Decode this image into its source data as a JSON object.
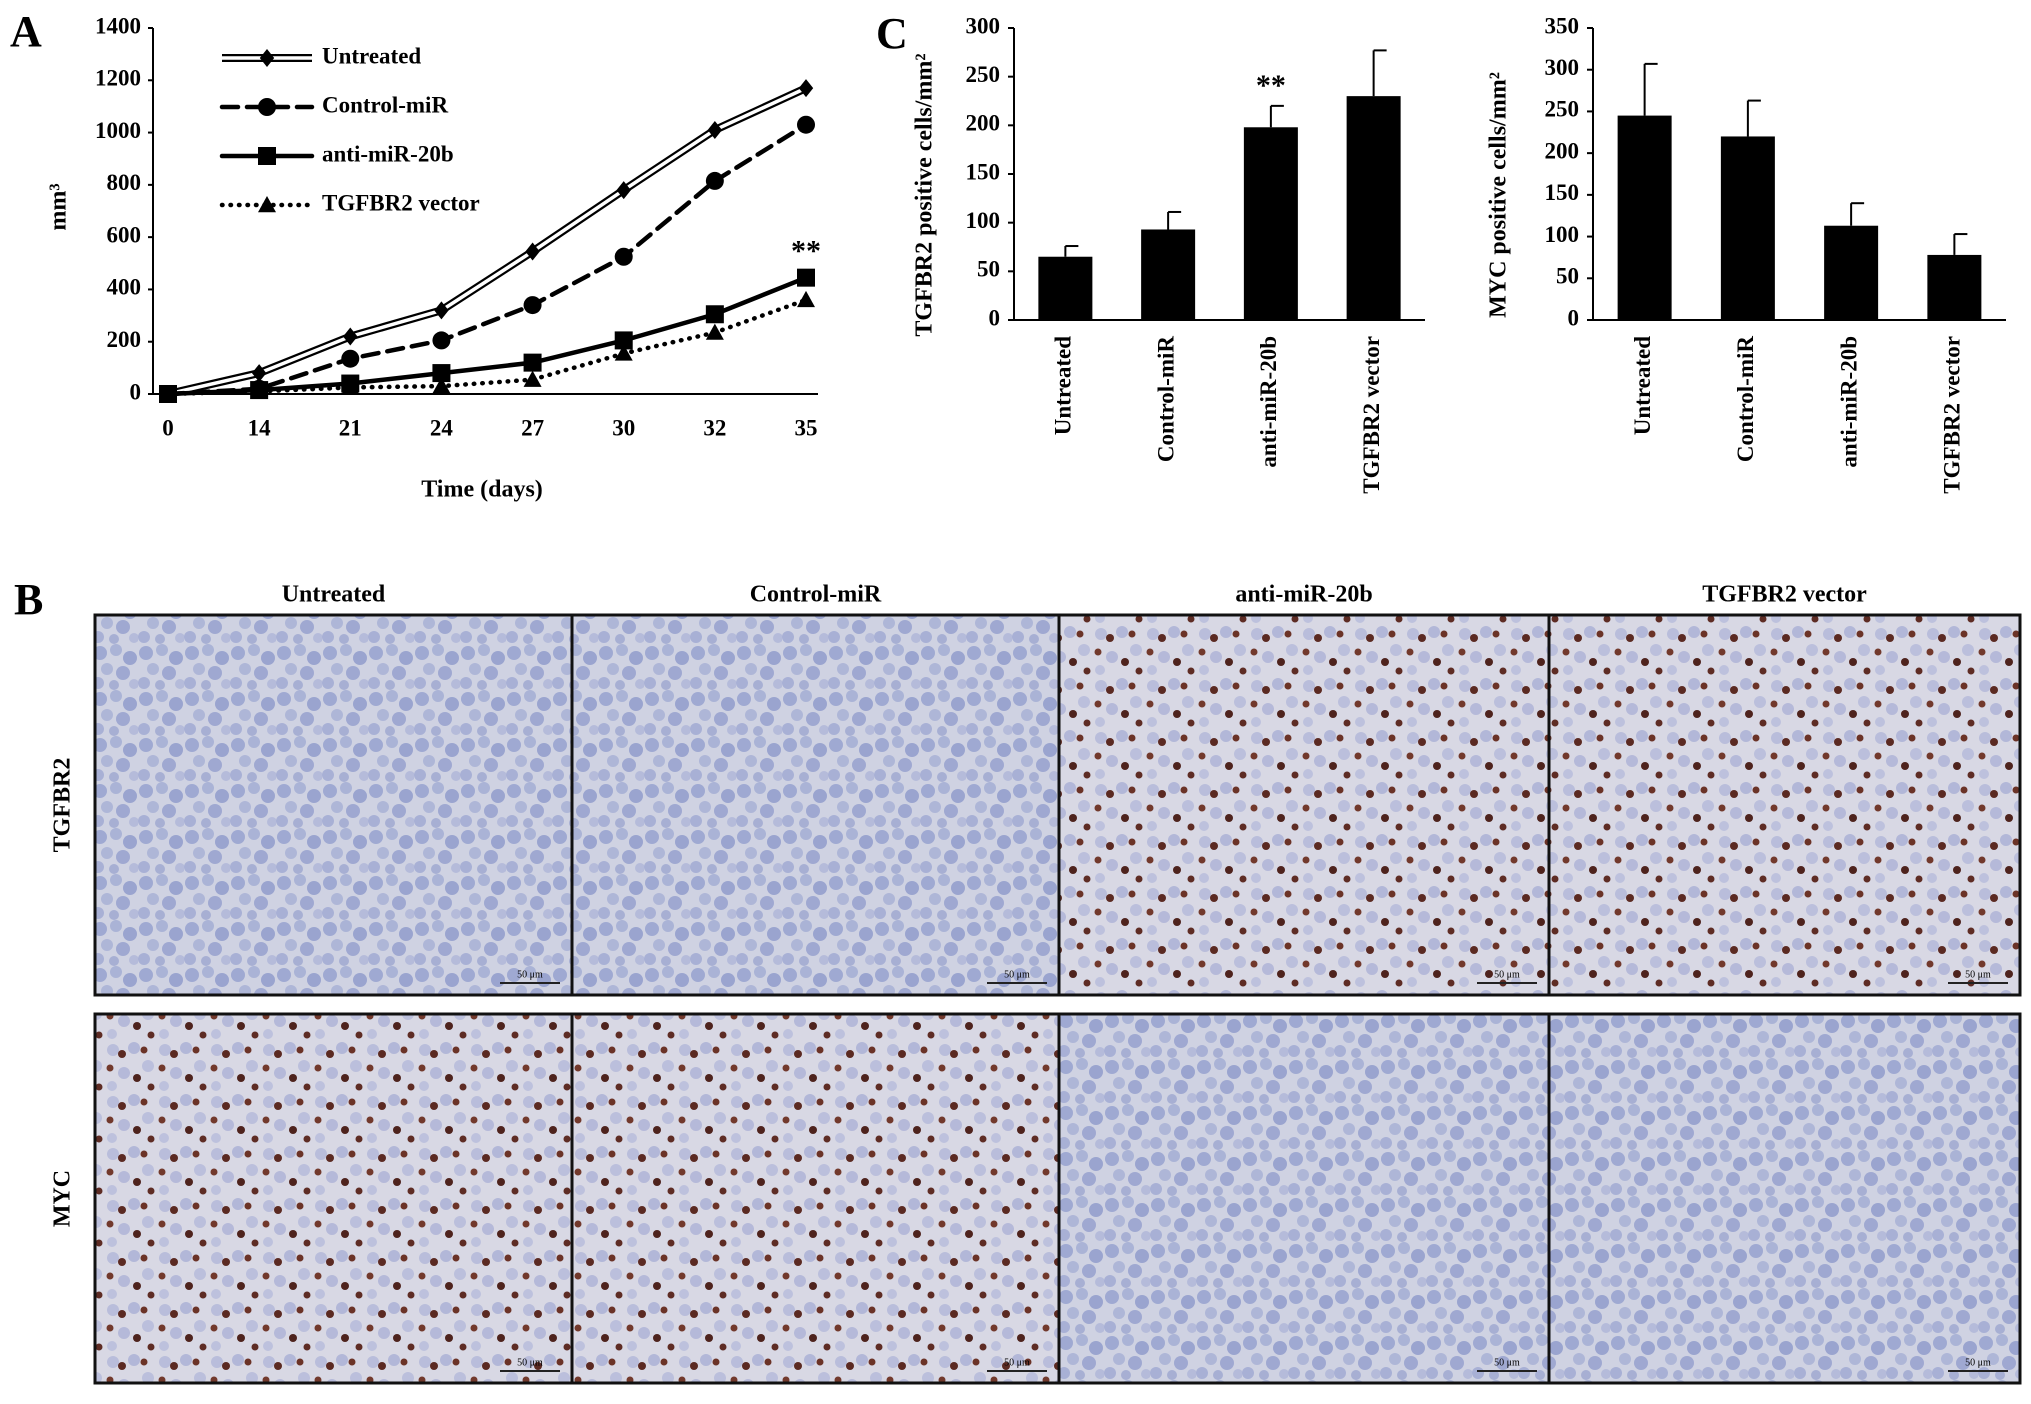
{
  "panel_labels": [
    "A",
    "B",
    "C"
  ],
  "chart_data": [
    {
      "type": "line",
      "ylabel": "mm³",
      "xlabel": "Time (days)",
      "categories": [
        "0",
        "14",
        "21",
        "24",
        "27",
        "30",
        "32",
        "35"
      ],
      "ylim": [
        0,
        1400
      ],
      "yticks": [
        0,
        200,
        400,
        600,
        800,
        1000,
        1200,
        1400
      ],
      "series": [
        {
          "name": "Untreated",
          "color": "#000000",
          "style": "double",
          "marker": "diamond",
          "values": [
            0,
            80,
            220,
            320,
            545,
            780,
            1010,
            1170
          ]
        },
        {
          "name": "Control-miR",
          "color": "#000000",
          "style": "dashed",
          "marker": "circle",
          "values": [
            0,
            20,
            135,
            205,
            340,
            525,
            815,
            1030
          ]
        },
        {
          "name": "anti-miR-20b",
          "color": "#000000",
          "style": "solid",
          "marker": "square",
          "values": [
            0,
            15,
            40,
            80,
            120,
            205,
            305,
            445
          ]
        },
        {
          "name": "TGFBR2 vector",
          "color": "#000000",
          "style": "dotted",
          "marker": "triangle",
          "values": [
            0,
            10,
            25,
            30,
            55,
            155,
            235,
            360
          ]
        }
      ],
      "annotation": "**"
    },
    {
      "type": "bar",
      "ylabel": "TGFBR2 positive cells/mm²",
      "color": "#000000",
      "categories": [
        "Untreated",
        "Control-miR",
        "anti-miR-20b",
        "TGFBR2 vector"
      ],
      "values": [
        65,
        93,
        198,
        230
      ],
      "errors": [
        11,
        18,
        22,
        47
      ],
      "ylim": [
        0,
        300
      ],
      "yticks": [
        0,
        50,
        100,
        150,
        200,
        250,
        300
      ],
      "annotation": "**"
    },
    {
      "type": "bar",
      "ylabel": "MYC positive cells/mm²",
      "color": "#000000",
      "categories": [
        "Untreated",
        "Control-miR",
        "anti-miR-20b",
        "TGFBR2 vector"
      ],
      "values": [
        245,
        220,
        113,
        78
      ],
      "errors": [
        62,
        43,
        27,
        25
      ],
      "ylim": [
        0,
        350
      ],
      "yticks": [
        0,
        50,
        100,
        150,
        200,
        250,
        300,
        350
      ]
    }
  ],
  "panel_b": {
    "columns": [
      "Untreated",
      "Control-miR",
      "anti-miR-20b",
      "TGFBR2 vector"
    ],
    "rows": [
      "TGFBR2",
      "MYC"
    ],
    "scale_bar": "50 μm"
  }
}
